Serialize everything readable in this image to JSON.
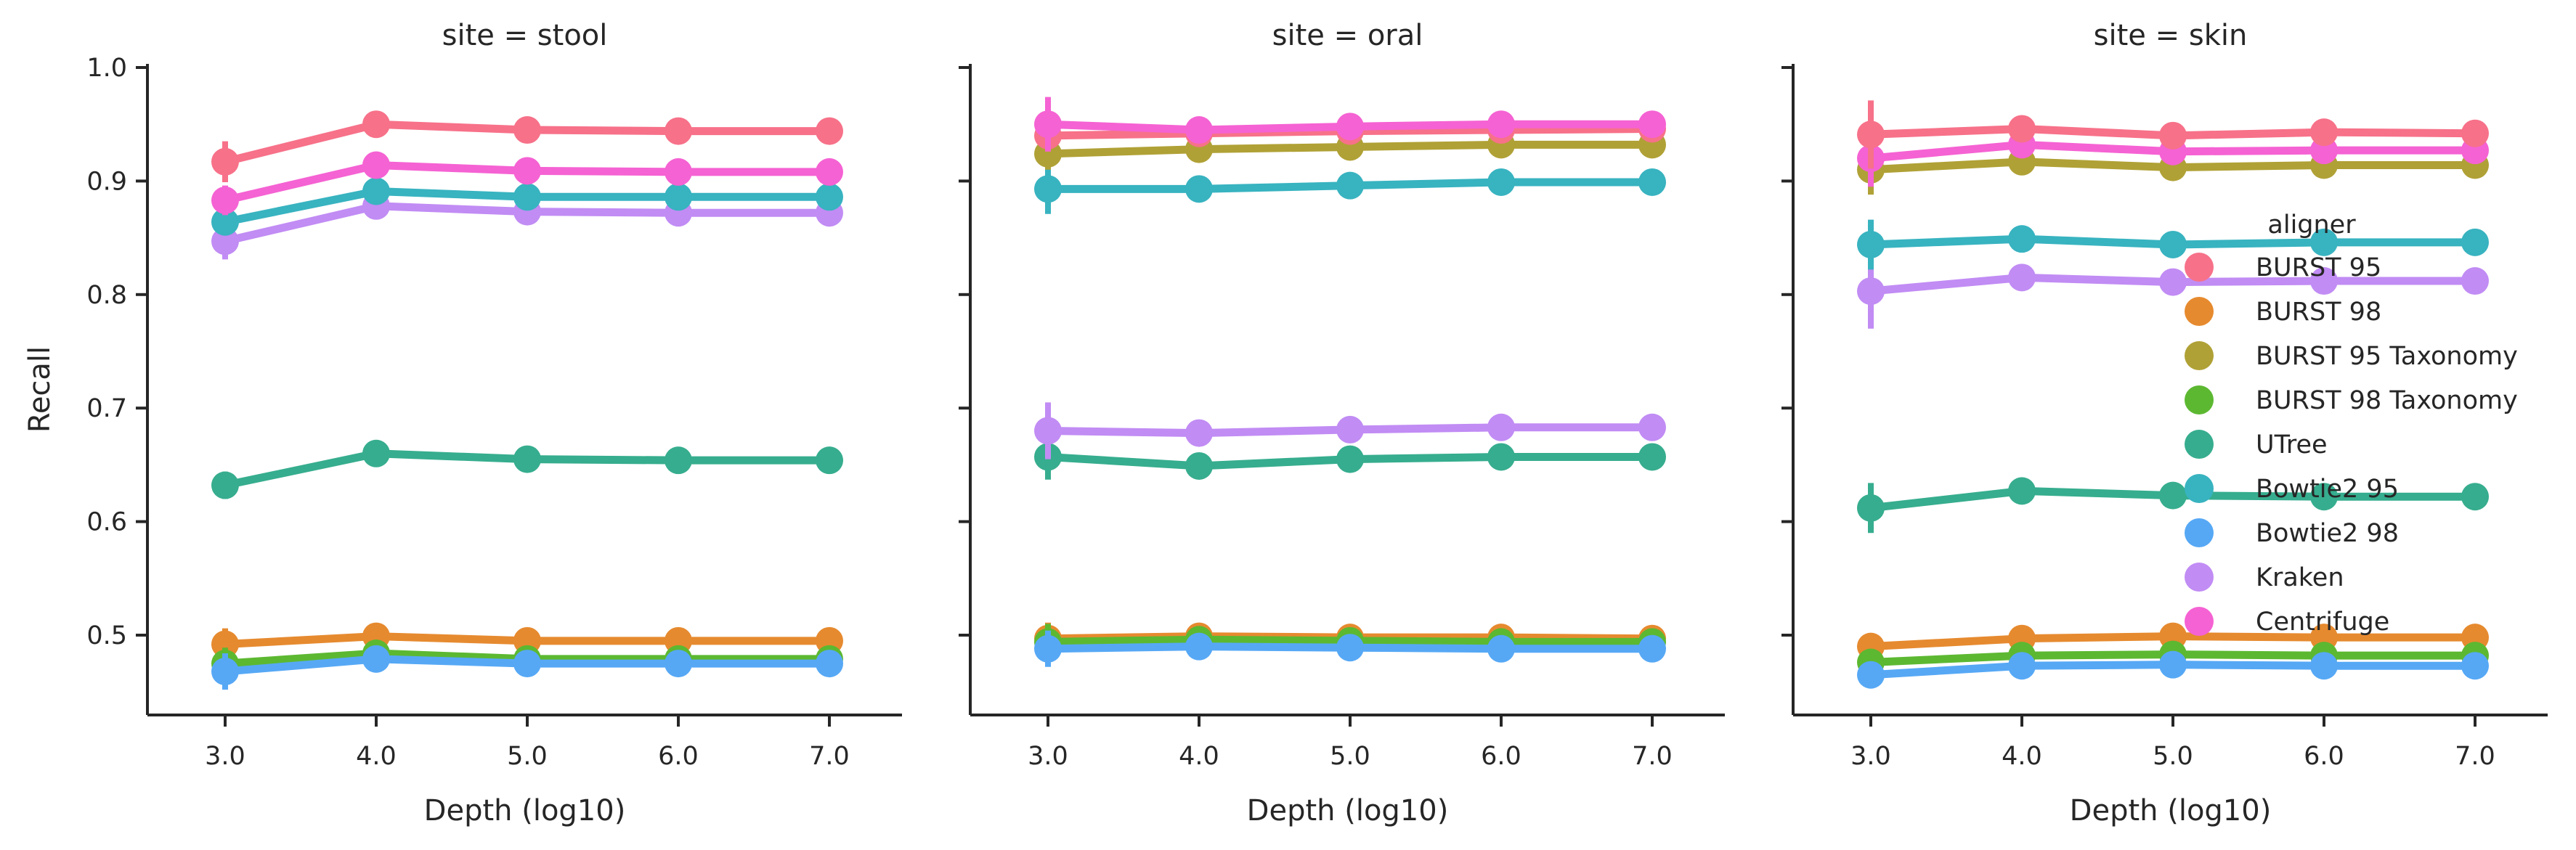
{
  "chart_data": {
    "type": "line",
    "ylabel": "Recall",
    "xlabel": "Depth (log10)",
    "x": [
      "3.0",
      "4.0",
      "5.0",
      "6.0",
      "7.0"
    ],
    "ylim": [
      0.42,
      1.0
    ],
    "yticks": [
      "0.5",
      "0.6",
      "0.7",
      "0.8",
      "0.9",
      "1.0"
    ],
    "grid": false,
    "legend": {
      "title": "aligner",
      "placement": "right, inside last panel",
      "entries": [
        {
          "name": "BURST 95",
          "color": "#f77189"
        },
        {
          "name": "BURST 98",
          "color": "#e68a2f"
        },
        {
          "name": "BURST 95 Taxonomy",
          "color": "#b0a136"
        },
        {
          "name": "BURST 98 Taxonomy",
          "color": "#5cb831"
        },
        {
          "name": "UTree",
          "color": "#36ad8e"
        },
        {
          "name": "Bowtie2 95",
          "color": "#38b3c0"
        },
        {
          "name": "Bowtie2 98",
          "color": "#56a8f5"
        },
        {
          "name": "Kraken",
          "color": "#c18cf4"
        },
        {
          "name": "Centrifuge",
          "color": "#f562d3"
        }
      ]
    },
    "panels": [
      {
        "title": "site = stool",
        "series": [
          {
            "name": "BURST 98",
            "values": [
              0.492,
              0.499,
              0.495,
              0.495,
              0.495
            ],
            "err": [
              0.014,
              0.004,
              0.004,
              0.003,
              0.003
            ]
          },
          {
            "name": "BURST 98 Taxonomy",
            "values": [
              0.475,
              0.484,
              0.479,
              0.479,
              0.479
            ],
            "err": [
              0.014,
              0.004,
              0.003,
              0.003,
              0.003
            ]
          },
          {
            "name": "Bowtie2 98",
            "values": [
              0.468,
              0.479,
              0.475,
              0.475,
              0.475
            ],
            "err": [
              0.016,
              0.005,
              0.004,
              0.003,
              0.003
            ]
          },
          {
            "name": "UTree",
            "values": [
              0.632,
              0.66,
              0.655,
              0.654,
              0.654
            ],
            "err": [
              0.012,
              0.004,
              0.003,
              0.003,
              0.003
            ]
          },
          {
            "name": "Kraken",
            "values": [
              0.847,
              0.878,
              0.873,
              0.872,
              0.872
            ],
            "err": [
              0.016,
              0.006,
              0.004,
              0.004,
              0.003
            ]
          },
          {
            "name": "Bowtie2 95",
            "values": [
              0.864,
              0.891,
              0.886,
              0.886,
              0.886
            ],
            "err": [
              0.012,
              0.004,
              0.003,
              0.003,
              0.003
            ]
          },
          {
            "name": "Centrifuge",
            "values": [
              0.883,
              0.914,
              0.909,
              0.908,
              0.908
            ],
            "err": [
              0.013,
              0.004,
              0.003,
              0.003,
              0.003
            ]
          },
          {
            "name": "BURST 95",
            "values": [
              0.917,
              0.95,
              0.945,
              0.944,
              0.944
            ],
            "err": [
              0.018,
              0.005,
              0.003,
              0.003,
              0.003
            ]
          }
        ]
      },
      {
        "title": "site = oral",
        "series": [
          {
            "name": "BURST 98",
            "values": [
              0.497,
              0.499,
              0.498,
              0.498,
              0.497
            ],
            "err": [
              0.014,
              0.005,
              0.004,
              0.004,
              0.004
            ]
          },
          {
            "name": "BURST 98 Taxonomy",
            "values": [
              0.494,
              0.496,
              0.495,
              0.494,
              0.494
            ],
            "err": [
              0.016,
              0.005,
              0.004,
              0.004,
              0.004
            ]
          },
          {
            "name": "Bowtie2 98",
            "values": [
              0.488,
              0.49,
              0.489,
              0.488,
              0.488
            ],
            "err": [
              0.016,
              0.005,
              0.004,
              0.004,
              0.004
            ]
          },
          {
            "name": "UTree",
            "values": [
              0.657,
              0.649,
              0.655,
              0.657,
              0.657
            ],
            "err": [
              0.02,
              0.006,
              0.004,
              0.004,
              0.004
            ]
          },
          {
            "name": "Kraken",
            "values": [
              0.68,
              0.678,
              0.681,
              0.683,
              0.683
            ],
            "err": [
              0.025,
              0.006,
              0.004,
              0.004,
              0.004
            ]
          },
          {
            "name": "Bowtie2 95",
            "values": [
              0.893,
              0.893,
              0.896,
              0.899,
              0.899
            ],
            "err": [
              0.022,
              0.005,
              0.004,
              0.004,
              0.004
            ]
          },
          {
            "name": "BURST 95 Taxonomy",
            "values": [
              0.924,
              0.928,
              0.93,
              0.932,
              0.932
            ],
            "err": [
              0.014,
              0.005,
              0.004,
              0.004,
              0.004
            ]
          },
          {
            "name": "BURST 95",
            "values": [
              0.94,
              0.942,
              0.944,
              0.945,
              0.946
            ],
            "err": [
              0.014,
              0.005,
              0.004,
              0.004,
              0.004
            ]
          },
          {
            "name": "Centrifuge",
            "values": [
              0.95,
              0.945,
              0.948,
              0.95,
              0.95
            ],
            "err": [
              0.024,
              0.006,
              0.004,
              0.004,
              0.004
            ]
          }
        ]
      },
      {
        "title": "site = skin",
        "series": [
          {
            "name": "BURST 98",
            "values": [
              0.49,
              0.497,
              0.499,
              0.498,
              0.498
            ],
            "err": [
              0.01,
              0.004,
              0.003,
              0.003,
              0.003
            ]
          },
          {
            "name": "BURST 98 Taxonomy",
            "values": [
              0.476,
              0.482,
              0.483,
              0.482,
              0.482
            ],
            "err": [
              0.01,
              0.004,
              0.003,
              0.003,
              0.003
            ]
          },
          {
            "name": "Bowtie2 98",
            "values": [
              0.465,
              0.473,
              0.474,
              0.473,
              0.473
            ],
            "err": [
              0.01,
              0.004,
              0.003,
              0.003,
              0.003
            ]
          },
          {
            "name": "UTree",
            "values": [
              0.612,
              0.627,
              0.623,
              0.622,
              0.622
            ],
            "err": [
              0.022,
              0.005,
              0.004,
              0.003,
              0.003
            ]
          },
          {
            "name": "Kraken",
            "values": [
              0.803,
              0.815,
              0.811,
              0.812,
              0.812
            ],
            "err": [
              0.033,
              0.006,
              0.004,
              0.004,
              0.004
            ]
          },
          {
            "name": "Bowtie2 95",
            "values": [
              0.844,
              0.849,
              0.844,
              0.846,
              0.846
            ],
            "err": [
              0.022,
              0.005,
              0.004,
              0.003,
              0.003
            ]
          },
          {
            "name": "BURST 95 Taxonomy",
            "values": [
              0.91,
              0.917,
              0.912,
              0.914,
              0.914
            ],
            "err": [
              0.022,
              0.005,
              0.004,
              0.003,
              0.003
            ]
          },
          {
            "name": "Centrifuge",
            "values": [
              0.92,
              0.932,
              0.926,
              0.927,
              0.927
            ],
            "err": [
              0.025,
              0.005,
              0.004,
              0.003,
              0.003
            ]
          },
          {
            "name": "BURST 95",
            "values": [
              0.941,
              0.946,
              0.94,
              0.943,
              0.942
            ],
            "err": [
              0.03,
              0.005,
              0.004,
              0.003,
              0.003
            ]
          }
        ]
      }
    ]
  }
}
